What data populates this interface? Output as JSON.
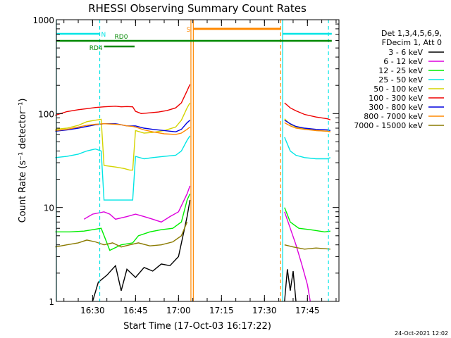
{
  "chart_data": {
    "type": "line",
    "title": "RHESSI Observing Summary Count Rates",
    "xlabel": "Start Time (17-Oct-03 16:17:22)",
    "ylabel": "Count Rate (s⁻¹ detector⁻¹)",
    "ylog": true,
    "ylim": [
      1,
      1000
    ],
    "xlim": [
      "16:17:22",
      "17:56:00"
    ],
    "y_ticks": [
      {
        "value": 1,
        "label": "1"
      },
      {
        "value": 10,
        "label": "10"
      },
      {
        "value": 100,
        "label": "100"
      },
      {
        "value": 1000,
        "label": "1000"
      }
    ],
    "x_ticks": [
      {
        "value": "16:30",
        "label": "16:30"
      },
      {
        "value": "16:45",
        "label": "16:45"
      },
      {
        "value": "17:00",
        "label": "17:00"
      },
      {
        "value": "17:15",
        "label": "17:15"
      },
      {
        "value": "17:30",
        "label": "17:30"
      },
      {
        "value": "17:45",
        "label": "17:45"
      }
    ],
    "legend_header": [
      "Det 1,3,4,5,6,9,",
      "FDecim 1, Att 0"
    ],
    "legend_position": "right",
    "series": [
      {
        "name": "3 - 6 keV",
        "color": "#000000",
        "points": [
          [
            "16:30",
            1.0
          ],
          [
            "16:32",
            1.6
          ],
          [
            "16:35",
            1.9
          ],
          [
            "16:38",
            2.4
          ],
          [
            "16:40",
            1.3
          ],
          [
            "16:42",
            2.2
          ],
          [
            "16:45",
            1.8
          ],
          [
            "16:48",
            2.3
          ],
          [
            "16:51",
            2.1
          ],
          [
            "16:54",
            2.5
          ],
          [
            "16:57",
            2.4
          ],
          [
            "17:00",
            3.0
          ],
          [
            "17:03",
            8.0
          ],
          [
            "17:04",
            12.0
          ]
        ],
        "segments2": [
          [
            "17:37",
            1.0
          ],
          [
            "17:38",
            2.2
          ],
          [
            "17:39",
            1.3
          ],
          [
            "17:40",
            2.1
          ],
          [
            "17:41",
            1.0
          ]
        ]
      },
      {
        "name": "6 - 12 keV",
        "color": "#dd00dd",
        "points": [
          [
            "16:27",
            7.5
          ],
          [
            "16:30",
            8.5
          ],
          [
            "16:34",
            9.0
          ],
          [
            "16:36",
            8.5
          ],
          [
            "16:38",
            7.5
          ],
          [
            "16:42",
            8.0
          ],
          [
            "16:45",
            8.5
          ],
          [
            "16:48",
            8.0
          ],
          [
            "16:51",
            7.5
          ],
          [
            "16:54",
            7.0
          ],
          [
            "16:57",
            8.0
          ],
          [
            "17:00",
            9.0
          ],
          [
            "17:03",
            14.0
          ],
          [
            "17:04",
            17.0
          ]
        ],
        "segments2": [
          [
            "17:37",
            9.0
          ],
          [
            "17:39",
            6.0
          ],
          [
            "17:41",
            4.0
          ],
          [
            "17:43",
            2.5
          ],
          [
            "17:45",
            1.5
          ],
          [
            "17:46",
            1.0
          ]
        ]
      },
      {
        "name": "12 - 25 keV",
        "color": "#00ee00",
        "points": [
          [
            "16:17",
            5.5
          ],
          [
            "16:22",
            5.5
          ],
          [
            "16:27",
            5.6
          ],
          [
            "16:30",
            5.8
          ],
          [
            "16:33",
            6.0
          ],
          [
            "16:36",
            3.5
          ],
          [
            "16:40",
            4.0
          ],
          [
            "16:44",
            4.2
          ],
          [
            "16:46",
            5.0
          ],
          [
            "16:50",
            5.5
          ],
          [
            "16:54",
            5.8
          ],
          [
            "16:58",
            6.0
          ],
          [
            "17:01",
            7.0
          ],
          [
            "17:03",
            12.0
          ],
          [
            "17:04",
            14.0
          ]
        ],
        "segments2": [
          [
            "17:37",
            10.0
          ],
          [
            "17:39",
            7.0
          ],
          [
            "17:42",
            6.0
          ],
          [
            "17:46",
            5.8
          ],
          [
            "17:51",
            5.5
          ],
          [
            "17:53",
            5.6
          ]
        ]
      },
      {
        "name": "25 - 50 keV",
        "color": "#00e5e5",
        "points": [
          [
            "16:17",
            34
          ],
          [
            "16:21",
            35
          ],
          [
            "16:25",
            37
          ],
          [
            "16:28",
            40
          ],
          [
            "16:31",
            42
          ],
          [
            "16:33",
            40
          ],
          [
            "16:34",
            12
          ],
          [
            "16:38",
            12
          ],
          [
            "16:41",
            12
          ],
          [
            "16:43",
            12
          ],
          [
            "16:44",
            12
          ],
          [
            "16:45",
            35
          ],
          [
            "16:48",
            33
          ],
          [
            "16:51",
            34
          ],
          [
            "16:55",
            35
          ],
          [
            "16:59",
            36
          ],
          [
            "17:01",
            40
          ],
          [
            "17:03",
            52
          ],
          [
            "17:04",
            58
          ]
        ],
        "segments2": [
          [
            "17:37",
            56
          ],
          [
            "17:39",
            40
          ],
          [
            "17:41",
            36
          ],
          [
            "17:44",
            34
          ],
          [
            "17:48",
            33
          ],
          [
            "17:52",
            33
          ],
          [
            "17:53",
            34
          ]
        ]
      },
      {
        "name": "50 - 100 keV",
        "color": "#d4d400",
        "points": [
          [
            "16:17",
            68
          ],
          [
            "16:21",
            70
          ],
          [
            "16:25",
            75
          ],
          [
            "16:28",
            82
          ],
          [
            "16:31",
            85
          ],
          [
            "16:33",
            87
          ],
          [
            "16:34",
            28
          ],
          [
            "16:38",
            27
          ],
          [
            "16:41",
            26
          ],
          [
            "16:43",
            25
          ],
          [
            "16:44",
            25
          ],
          [
            "16:45",
            66
          ],
          [
            "16:48",
            62
          ],
          [
            "16:51",
            63
          ],
          [
            "16:55",
            66
          ],
          [
            "16:59",
            72
          ],
          [
            "17:01",
            85
          ],
          [
            "17:03",
            115
          ],
          [
            "17:04",
            130
          ]
        ],
        "segments2": [
          [
            "17:37",
            88
          ],
          [
            "17:39",
            77
          ],
          [
            "17:41",
            72
          ],
          [
            "17:44",
            69
          ],
          [
            "17:48",
            66
          ],
          [
            "17:52",
            65
          ],
          [
            "17:53",
            64
          ]
        ]
      },
      {
        "name": "100 - 300 keV",
        "color": "#ee0000",
        "points": [
          [
            "16:17",
            96
          ],
          [
            "16:21",
            105
          ],
          [
            "16:25",
            110
          ],
          [
            "16:28",
            113
          ],
          [
            "16:31",
            116
          ],
          [
            "16:34",
            118
          ],
          [
            "16:38",
            120
          ],
          [
            "16:40",
            118
          ],
          [
            "16:42",
            119
          ],
          [
            "16:44",
            118
          ],
          [
            "16:45",
            106
          ],
          [
            "16:47",
            100
          ],
          [
            "16:50",
            102
          ],
          [
            "16:53",
            104
          ],
          [
            "16:56",
            108
          ],
          [
            "16:59",
            115
          ],
          [
            "17:01",
            130
          ],
          [
            "17:03",
            175
          ],
          [
            "17:04",
            205
          ]
        ],
        "segments2": [
          [
            "17:37",
            130
          ],
          [
            "17:39",
            115
          ],
          [
            "17:41",
            107
          ],
          [
            "17:44",
            98
          ],
          [
            "17:48",
            92
          ],
          [
            "17:52",
            88
          ],
          [
            "17:53",
            86
          ]
        ]
      },
      {
        "name": "300 - 800 keV",
        "color": "#0000dd",
        "points": [
          [
            "16:17",
            65
          ],
          [
            "16:21",
            67
          ],
          [
            "16:25",
            70
          ],
          [
            "16:28",
            73
          ],
          [
            "16:31",
            76
          ],
          [
            "16:34",
            78
          ],
          [
            "16:38",
            78
          ],
          [
            "16:40",
            76
          ],
          [
            "16:42",
            74
          ],
          [
            "16:44",
            74
          ],
          [
            "16:45",
            74
          ],
          [
            "16:48",
            70
          ],
          [
            "16:51",
            68
          ],
          [
            "16:55",
            66
          ],
          [
            "16:59",
            64
          ],
          [
            "17:01",
            68
          ],
          [
            "17:03",
            80
          ],
          [
            "17:04",
            85
          ]
        ],
        "segments2": [
          [
            "17:37",
            85
          ],
          [
            "17:39",
            78
          ],
          [
            "17:41",
            73
          ],
          [
            "17:44",
            70
          ],
          [
            "17:48",
            68
          ],
          [
            "17:52",
            67
          ],
          [
            "17:53",
            66
          ]
        ]
      },
      {
        "name": "800 - 7000 keV",
        "color": "#ff8800",
        "points": [
          [
            "16:17",
            66
          ],
          [
            "16:21",
            68
          ],
          [
            "16:25",
            72
          ],
          [
            "16:28",
            75
          ],
          [
            "16:31",
            77
          ],
          [
            "16:34",
            78
          ],
          [
            "16:38",
            77
          ],
          [
            "16:40",
            76
          ],
          [
            "16:42",
            74
          ],
          [
            "16:44",
            73
          ],
          [
            "16:45",
            72
          ],
          [
            "16:48",
            67
          ],
          [
            "16:51",
            64
          ],
          [
            "16:55",
            61
          ],
          [
            "16:59",
            60
          ],
          [
            "17:01",
            62
          ],
          [
            "17:03",
            68
          ],
          [
            "17:04",
            72
          ]
        ],
        "segments2": [
          [
            "17:37",
            80
          ],
          [
            "17:39",
            74
          ],
          [
            "17:41",
            70
          ],
          [
            "17:44",
            68
          ],
          [
            "17:48",
            66
          ],
          [
            "17:52",
            65
          ],
          [
            "17:53",
            64
          ]
        ]
      },
      {
        "name": "7000 - 15000 keV",
        "color": "#8a7a00",
        "points": [
          [
            "16:17",
            3.8
          ],
          [
            "16:21",
            4.0
          ],
          [
            "16:25",
            4.2
          ],
          [
            "16:28",
            4.5
          ],
          [
            "16:31",
            4.3
          ],
          [
            "16:34",
            4.0
          ],
          [
            "16:37",
            4.2
          ],
          [
            "16:40",
            3.8
          ],
          [
            "16:43",
            4.0
          ],
          [
            "16:46",
            4.2
          ],
          [
            "16:50",
            3.9
          ],
          [
            "16:54",
            4.0
          ],
          [
            "16:58",
            4.3
          ],
          [
            "17:01",
            5.0
          ],
          [
            "17:03",
            7.0
          ]
        ],
        "segments2": [
          [
            "17:37",
            4.0
          ],
          [
            "17:40",
            3.8
          ],
          [
            "17:44",
            3.6
          ],
          [
            "17:48",
            3.7
          ],
          [
            "17:53",
            3.6
          ]
        ]
      }
    ],
    "vlines": [
      {
        "time": "16:17:22",
        "color": "#00e5e5",
        "style": "solid"
      },
      {
        "time": "16:32:30",
        "color": "#00e5e5",
        "style": "dashed"
      },
      {
        "time": "17:04:20",
        "color": "#ff8800",
        "style": "solid"
      },
      {
        "time": "17:05:10",
        "color": "#ff8800",
        "style": "solid"
      },
      {
        "time": "17:35:40",
        "color": "#ff8800",
        "style": "dashed"
      },
      {
        "time": "17:36:20",
        "color": "#00e5e5",
        "style": "solid"
      },
      {
        "time": "17:52:20",
        "color": "#00e5e5",
        "style": "dashed"
      }
    ],
    "flags": [
      {
        "label": "N",
        "color": "#00e5e5",
        "level": 1,
        "start": "16:17:22",
        "end": "16:32:30",
        "start2": "17:36:20",
        "end2": "17:53:30",
        "label_pos": "end"
      },
      {
        "label": "S",
        "color": "#ff8800",
        "level": 0,
        "start": "17:05:10",
        "end": "17:35:40",
        "label_pos": "start"
      },
      {
        "label": "RD0",
        "color": "#008800",
        "level": 2,
        "start": "16:17:22",
        "end": "17:53:30",
        "label_pos": "mid"
      },
      {
        "label": "RD4",
        "color": "#008800",
        "level": 3,
        "start": "16:34:00",
        "end": "16:44:40",
        "label_pos": "start"
      }
    ],
    "flag_labels": {
      "RD0": "RD0",
      "RD4": "RD4",
      "N": "N",
      "S": "S"
    }
  },
  "footer": {
    "timestamp": "24-Oct-2021 12:02"
  }
}
